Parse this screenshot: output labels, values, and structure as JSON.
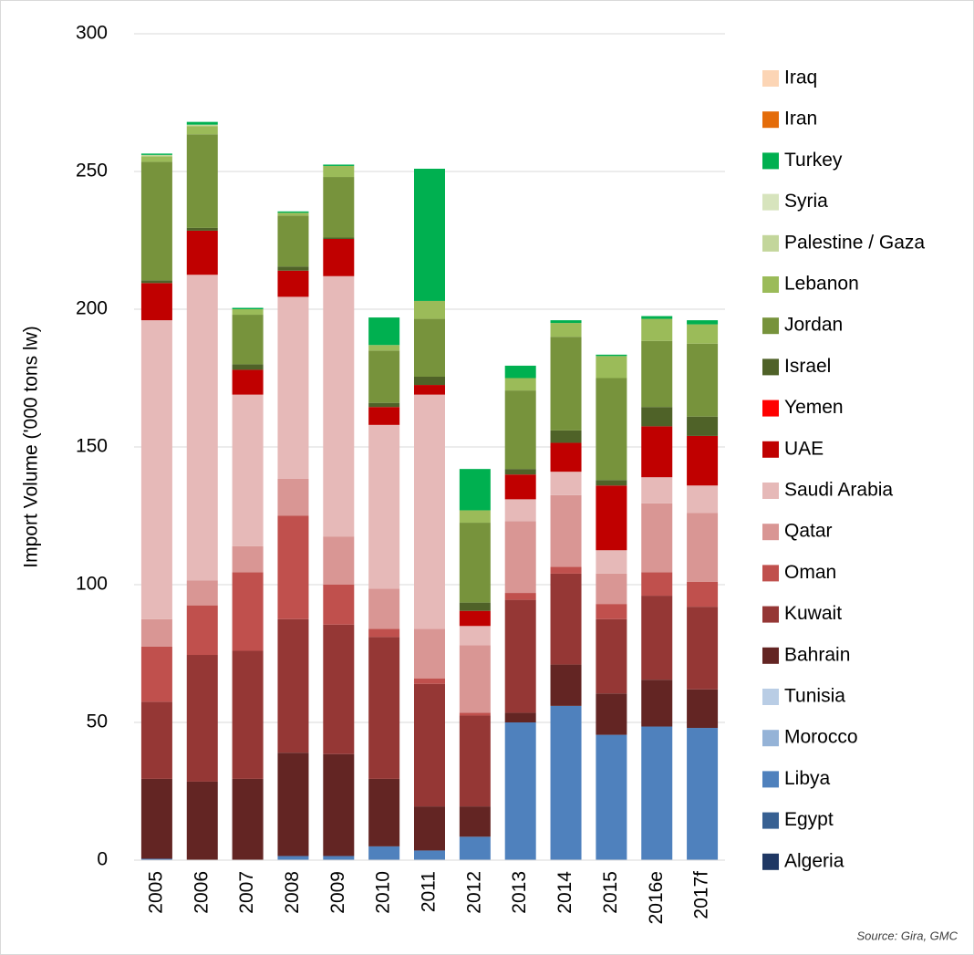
{
  "chart_data": {
    "type": "stacked_bar",
    "y_label": "Import Volume ('000 tons lw)",
    "source": "Source: Gira, GMC",
    "categories": [
      "2005",
      "2006",
      "2007",
      "2008",
      "2009",
      "2010",
      "2011",
      "2012",
      "2013",
      "2014",
      "2015",
      "2016e",
      "2017f"
    ],
    "ylim": [
      0,
      300
    ],
    "yticks": [
      0,
      50,
      100,
      150,
      200,
      250,
      300
    ],
    "grid": true,
    "series": [
      {
        "name": "Algeria",
        "color": "#1f3864",
        "values": [
          0,
          0,
          0,
          0,
          0,
          0,
          0,
          0,
          0,
          0,
          0,
          0,
          0
        ]
      },
      {
        "name": "Egypt",
        "color": "#376092",
        "values": [
          0,
          0,
          0,
          0,
          0,
          0,
          0,
          0,
          0,
          0,
          0,
          0,
          0
        ]
      },
      {
        "name": "Libya",
        "color": "#4f81bd",
        "values": [
          0.5,
          0,
          0,
          1.5,
          1.5,
          5,
          3.5,
          8.5,
          50,
          56,
          45.5,
          48.5,
          48
        ]
      },
      {
        "name": "Morocco",
        "color": "#95b3d7",
        "values": [
          0,
          0,
          0,
          0,
          0,
          0,
          0,
          0,
          0,
          0,
          0,
          0,
          0
        ]
      },
      {
        "name": "Tunisia",
        "color": "#b9cde5",
        "values": [
          0,
          0,
          0,
          0,
          0,
          0,
          0,
          0,
          0,
          0,
          0,
          0,
          0
        ]
      },
      {
        "name": "Bahrain",
        "color": "#632523",
        "values": [
          29,
          28.5,
          29.5,
          37.5,
          37,
          24.5,
          16,
          11,
          3.5,
          15,
          15,
          17,
          14
        ]
      },
      {
        "name": "Kuwait",
        "color": "#953735",
        "values": [
          28,
          46,
          46.5,
          48.5,
          47,
          51.5,
          44.5,
          33,
          41,
          33,
          27,
          30.5,
          30
        ]
      },
      {
        "name": "Oman",
        "color": "#c0504d",
        "values": [
          20,
          18,
          28.5,
          37.5,
          14.5,
          3,
          2,
          1,
          2.5,
          2.5,
          5.5,
          8.5,
          9
        ]
      },
      {
        "name": "Qatar",
        "color": "#d99694",
        "values": [
          10,
          9,
          9.5,
          13.5,
          17.5,
          14.5,
          18,
          24.5,
          26,
          26,
          11,
          25,
          25
        ]
      },
      {
        "name": "Saudi Arabia",
        "color": "#e6b9b8",
        "values": [
          108.5,
          111,
          55,
          66,
          94.5,
          59.5,
          85,
          7,
          8,
          8.5,
          8.5,
          9.5,
          10
        ]
      },
      {
        "name": "UAE",
        "color": "#c00000",
        "values": [
          13.5,
          16,
          9,
          9.5,
          13.5,
          6.5,
          3.5,
          5.5,
          9,
          10.5,
          23.5,
          18.5,
          18
        ]
      },
      {
        "name": "Yemen",
        "color": "#ff0000",
        "values": [
          0,
          0,
          0,
          0,
          0,
          0,
          0,
          0,
          0,
          0,
          0,
          0,
          0
        ]
      },
      {
        "name": "Israel",
        "color": "#4f6228",
        "values": [
          1,
          1,
          2,
          1.5,
          0.5,
          1.5,
          3,
          3,
          2,
          4.5,
          2,
          7,
          7
        ]
      },
      {
        "name": "Jordan",
        "color": "#77933c",
        "values": [
          43,
          34,
          18,
          18.5,
          22,
          19,
          21,
          29,
          28.5,
          34,
          37,
          24,
          26.5
        ]
      },
      {
        "name": "Lebanon",
        "color": "#9bbb59",
        "values": [
          2,
          3,
          2,
          1,
          4,
          2,
          6.5,
          4.5,
          4.5,
          5,
          8,
          8,
          7
        ]
      },
      {
        "name": "Palestine / Gaza",
        "color": "#c3d69b",
        "values": [
          0.5,
          0.5,
          0,
          0,
          0,
          0,
          0,
          0,
          0,
          0,
          0,
          0,
          0
        ]
      },
      {
        "name": "Syria",
        "color": "#d7e4bd",
        "values": [
          0,
          0,
          0,
          0,
          0,
          0,
          0,
          0,
          0,
          0,
          0,
          0,
          0
        ]
      },
      {
        "name": "Turkey",
        "color": "#00b050",
        "values": [
          0.5,
          1,
          0.5,
          0.5,
          0.5,
          10,
          48,
          15,
          4.5,
          1,
          0.5,
          1,
          1.5
        ]
      },
      {
        "name": "Iran",
        "color": "#e46c0a",
        "values": [
          0,
          0,
          0,
          0,
          0,
          0,
          0,
          0,
          0,
          0,
          0,
          0,
          0
        ]
      },
      {
        "name": "Iraq",
        "color": "#fcd5b5",
        "values": [
          0,
          0,
          0,
          0,
          0,
          0,
          0,
          0,
          0,
          0,
          0,
          0,
          0
        ]
      }
    ]
  }
}
